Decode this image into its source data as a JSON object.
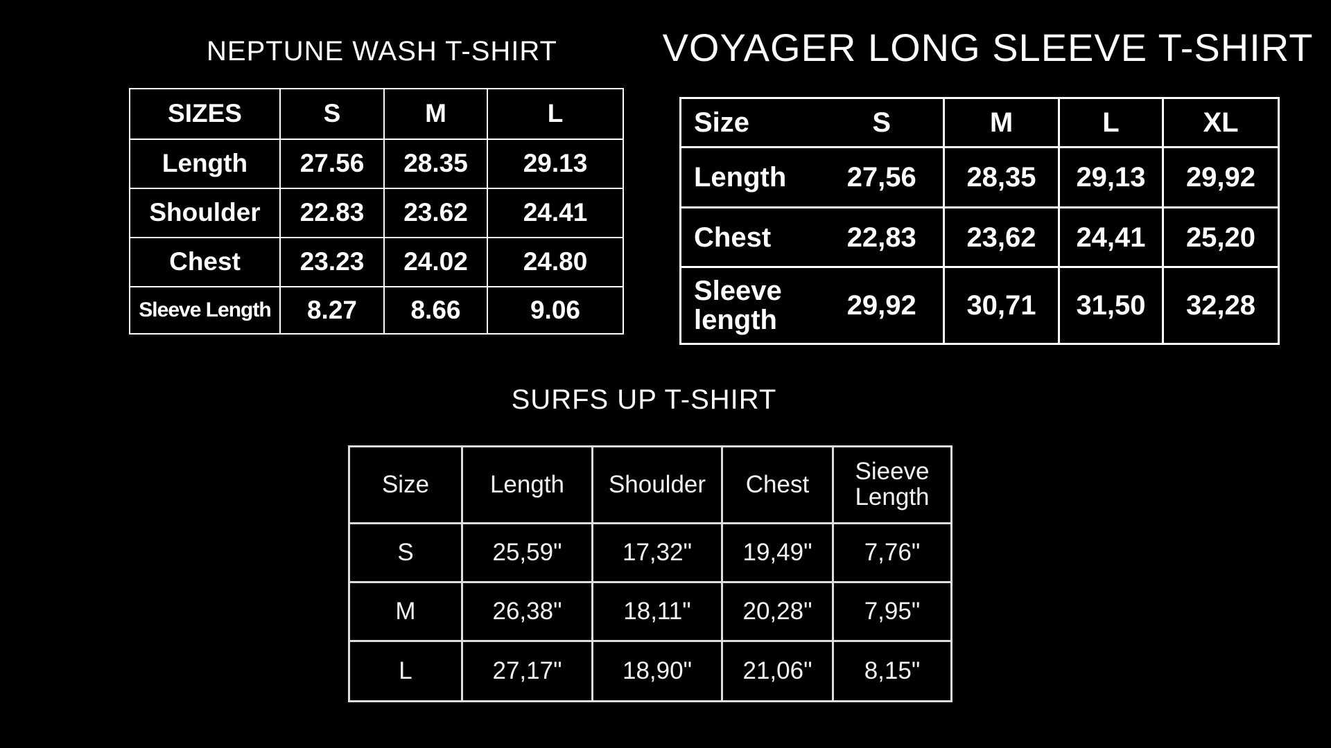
{
  "neptune": {
    "title": "NEPTUNE WASH T-SHIRT",
    "header": [
      "SIZES",
      "S",
      "M",
      "L"
    ],
    "rows": [
      [
        "Length",
        "27.56",
        "28.35",
        "29.13"
      ],
      [
        "Shoulder",
        "22.83",
        "23.62",
        "24.41"
      ],
      [
        "Chest",
        "23.23",
        "24.02",
        "24.80"
      ],
      [
        "Sleeve Length",
        "8.27",
        "8.66",
        "9.06"
      ]
    ]
  },
  "voyager": {
    "title": "VOYAGER LONG SLEEVE T-SHIRT",
    "header": [
      "Size",
      "S",
      "M",
      "L",
      "XL"
    ],
    "rows": [
      [
        "Length",
        "27,56",
        "28,35",
        "29,13",
        "29,92"
      ],
      [
        "Chest",
        "22,83",
        "23,62",
        "24,41",
        "25,20"
      ],
      [
        "Sleeve length",
        "29,92",
        "30,71",
        "31,50",
        "32,28"
      ]
    ]
  },
  "surfs": {
    "title": "SURFS UP T-SHIRT",
    "header": [
      "Size",
      "Length",
      "Shoulder",
      "Chest",
      "Sieeve Length"
    ],
    "rows": [
      [
        "S",
        "25,59\"",
        "17,32\"",
        "19,49\"",
        "7,76\""
      ],
      [
        "M",
        "26,38\"",
        "18,11\"",
        "20,28\"",
        "7,95\""
      ],
      [
        "L",
        "27,17\"",
        "18,90\"",
        "21,06\"",
        "8,15\""
      ]
    ]
  }
}
